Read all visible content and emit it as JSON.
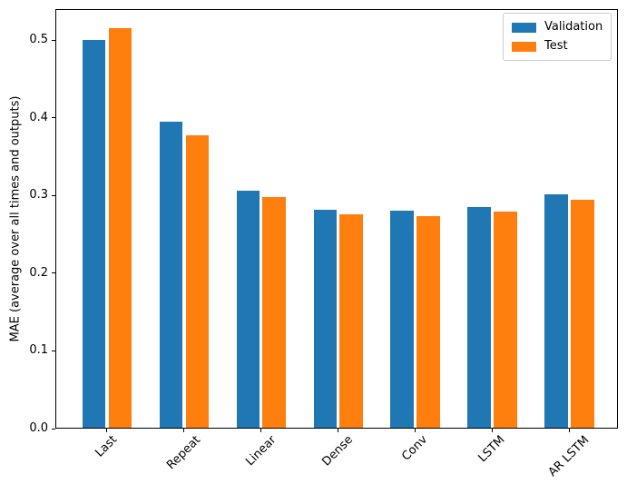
{
  "figure": {
    "background": "#ffffff"
  },
  "chart_data": {
    "type": "bar",
    "title": "",
    "xlabel": "",
    "ylabel": "MAE (average over all times and outputs)",
    "categories": [
      "Last",
      "Repeat",
      "Linear",
      "Dense",
      "Conv",
      "LSTM",
      "AR LSTM"
    ],
    "series": [
      {
        "name": "Validation",
        "color": "#1f77b4",
        "values": [
          0.5,
          0.395,
          0.306,
          0.282,
          0.28,
          0.285,
          0.301
        ]
      },
      {
        "name": "Test",
        "color": "#ff7f0e",
        "values": [
          0.515,
          0.377,
          0.298,
          0.276,
          0.274,
          0.279,
          0.294
        ]
      }
    ],
    "yticks": [
      0.0,
      0.1,
      0.2,
      0.3,
      0.4,
      0.5
    ],
    "ytick_labels": [
      "0.0",
      "0.1",
      "0.2",
      "0.3",
      "0.4",
      "0.5"
    ],
    "ylim": [
      0,
      0.54
    ],
    "xtick_rotation_deg": 45,
    "grid": false,
    "legend": {
      "position": "upper right",
      "entries": [
        "Validation",
        "Test"
      ]
    }
  }
}
